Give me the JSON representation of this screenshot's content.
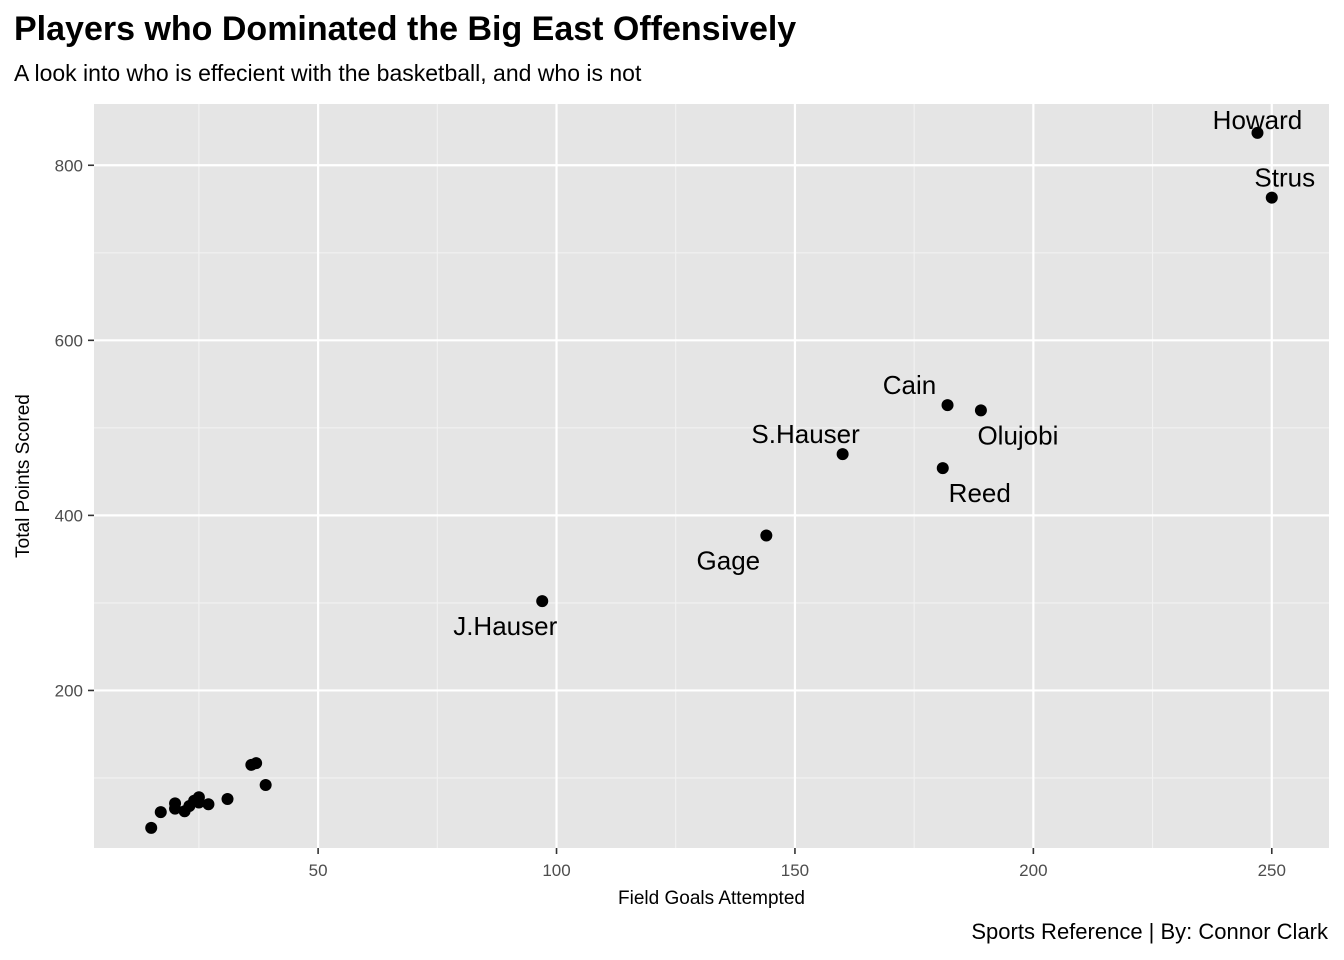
{
  "title": "Players who Dominated the Big East Offensively",
  "subtitle": "A look into who is effecient with the basketball, and who is not",
  "caption": "Sports Reference | By: Connor Clark",
  "chart_data": {
    "type": "scatter",
    "title": "Players who Dominated the Big East Offensively",
    "subtitle": "A look into who is effecient with the basketball, and who is not",
    "xlabel": "Field Goals Attempted",
    "ylabel": "Total Points Scored",
    "xlim": [
      3,
      262
    ],
    "ylim": [
      20,
      870
    ],
    "x_ticks": [
      50,
      100,
      150,
      200,
      250
    ],
    "y_ticks": [
      200,
      400,
      600,
      800
    ],
    "grid": true,
    "legend": "none",
    "panel_color": "#e5e5e5",
    "point_color": "#000000",
    "points": [
      {
        "x": 247,
        "y": 837,
        "label": "Howard"
      },
      {
        "x": 250,
        "y": 763,
        "label": "Strus"
      },
      {
        "x": 182,
        "y": 526,
        "label": "Cain"
      },
      {
        "x": 189,
        "y": 520,
        "label": "Olujobi"
      },
      {
        "x": 160,
        "y": 470,
        "label": "S.Hauser"
      },
      {
        "x": 181,
        "y": 454,
        "label": "Reed"
      },
      {
        "x": 144,
        "y": 377,
        "label": "Gage"
      },
      {
        "x": 97,
        "y": 302,
        "label": "J.Hauser"
      },
      {
        "x": 15,
        "y": 43,
        "label": ""
      },
      {
        "x": 17,
        "y": 61,
        "label": ""
      },
      {
        "x": 20,
        "y": 71,
        "label": ""
      },
      {
        "x": 20,
        "y": 65,
        "label": ""
      },
      {
        "x": 22,
        "y": 62,
        "label": ""
      },
      {
        "x": 23,
        "y": 68,
        "label": ""
      },
      {
        "x": 24,
        "y": 74,
        "label": ""
      },
      {
        "x": 25,
        "y": 78,
        "label": ""
      },
      {
        "x": 25,
        "y": 72,
        "label": ""
      },
      {
        "x": 27,
        "y": 70,
        "label": ""
      },
      {
        "x": 31,
        "y": 76,
        "label": ""
      },
      {
        "x": 36,
        "y": 115,
        "label": ""
      },
      {
        "x": 37,
        "y": 117,
        "label": ""
      },
      {
        "x": 39,
        "y": 92,
        "label": ""
      }
    ]
  }
}
